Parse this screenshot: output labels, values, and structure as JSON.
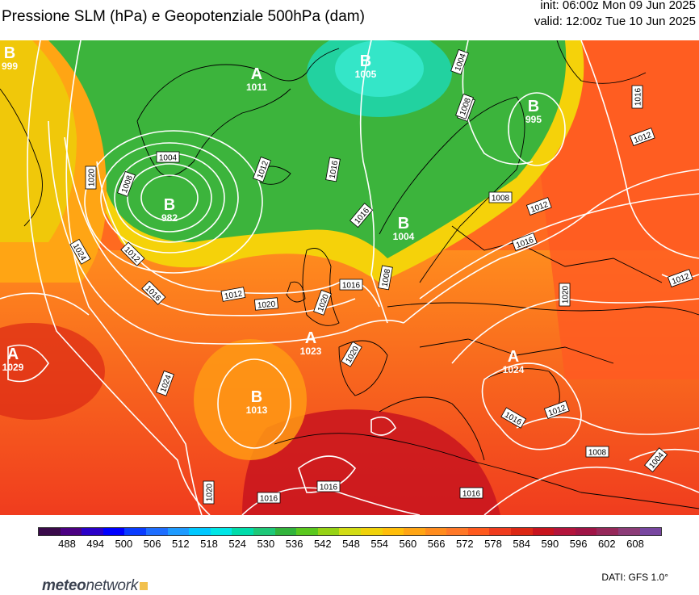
{
  "header": {
    "title": "Pressione SLM (hPa) e Geopotenziale 500hPa (dam)",
    "init": "init: 06:00z Mon 09 Jun 2025",
    "valid": "valid: 12:00z Tue 10 Jun 2025"
  },
  "colorbar": {
    "labels": [
      "488",
      "494",
      "500",
      "506",
      "512",
      "518",
      "524",
      "530",
      "536",
      "542",
      "548",
      "554",
      "560",
      "566",
      "572",
      "578",
      "584",
      "590",
      "596",
      "602",
      "608"
    ],
    "colors": [
      "#3a0a4a",
      "#4b0082",
      "#2a00c8",
      "#0000ff",
      "#0a3cff",
      "#1e6eff",
      "#1e9bff",
      "#00c8ff",
      "#00e6e6",
      "#00dcaa",
      "#1ec878",
      "#32b43c",
      "#5ac81e",
      "#96d214",
      "#d2dc14",
      "#f0d20a",
      "#ffbe0a",
      "#ffa514",
      "#ff8c1e",
      "#ff7828",
      "#ff5a1e",
      "#f03c1e",
      "#dc2814",
      "#c8141e",
      "#b4143c",
      "#a01446",
      "#96285a",
      "#8c3c78",
      "#7846a0"
    ]
  },
  "centers": [
    {
      "type": "B",
      "value": "999"
    },
    {
      "type": "A",
      "value": "1011"
    },
    {
      "type": "B",
      "value": "1005"
    },
    {
      "type": "B",
      "value": "995"
    },
    {
      "type": "B",
      "value": "982"
    },
    {
      "type": "B",
      "value": "1004"
    },
    {
      "type": "A",
      "value": "1023"
    },
    {
      "type": "A",
      "value": "1029"
    },
    {
      "type": "B",
      "value": "1013"
    },
    {
      "type": "A",
      "value": "1024"
    }
  ],
  "isobar_labels": [
    "1004",
    "1004",
    "1008",
    "1004",
    "1008",
    "1008",
    "1012",
    "1016",
    "1020",
    "1024",
    "1012",
    "1016",
    "1020",
    "1012",
    "1016",
    "1016",
    "1008",
    "1016",
    "1020",
    "1012",
    "1012",
    "1016",
    "1020",
    "1012",
    "1024",
    "1020",
    "1016",
    "1016",
    "1016",
    "1012",
    "1016",
    "1008",
    "1004",
    "1020"
  ],
  "footer": {
    "logo_main": "meteo",
    "logo_lite": "network",
    "credit": "DATI: GFS 1.0°"
  },
  "colors": {
    "land_border": "#000000",
    "isobar": "#ffffff"
  }
}
